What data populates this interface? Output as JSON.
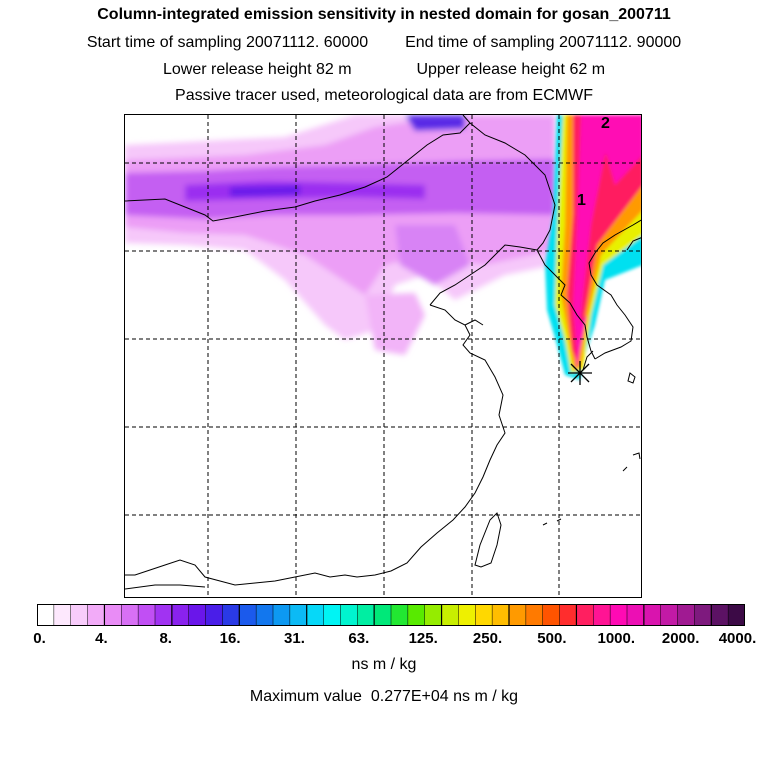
{
  "title": "Column-integrated emission sensitivity in nested domain for gosan_200711",
  "sampling": {
    "start_label": "Start time of sampling",
    "start_value": "20071112. 60000",
    "end_label": "End time of sampling",
    "end_value": "20071112. 90000"
  },
  "release": {
    "lower_label": "Lower release height",
    "lower_value": "82 m",
    "upper_label": "Upper release height",
    "upper_value": "62 m"
  },
  "tracer_note": "Passive tracer used, meteorological data are from ECMWF",
  "map": {
    "receptor_marker": "asterisk-icon",
    "plume_labels": [
      "1",
      "2"
    ]
  },
  "colorbar": {
    "tick_labels": [
      "0.",
      "4.",
      "8.",
      "16.",
      "31.",
      "63.",
      "125.",
      "250.",
      "500.",
      "1000.",
      "2000.",
      "4000."
    ],
    "colors": [
      "#ffffff",
      "#fde8fd",
      "#f8ccfb",
      "#f2abf8",
      "#e98cf6",
      "#d870f5",
      "#c14ff4",
      "#a133f2",
      "#8a22ee",
      "#6a16ea",
      "#4a1ee8",
      "#2a3ae6",
      "#1b5aec",
      "#1277ee",
      "#0d99f2",
      "#0cbaf5",
      "#06d8f8",
      "#00f4f4",
      "#00f4cf",
      "#00eea2",
      "#00e879",
      "#22e832",
      "#58ea00",
      "#95ec00",
      "#c8ee00",
      "#eef000",
      "#ffd800",
      "#ffbd00",
      "#ff9a00",
      "#ff7a00",
      "#ff5400",
      "#ff2d2d",
      "#ff1f60",
      "#ff1494",
      "#ff0ab4",
      "#ec0fb4",
      "#d914ae",
      "#c21aa6",
      "#a01a92",
      "#7e1a7e",
      "#5c1264",
      "#3c0a46"
    ],
    "units": "ns m / kg",
    "max_label": "Maximum value",
    "max_value": "0.277E+04",
    "max_units": "ns m / kg"
  }
}
